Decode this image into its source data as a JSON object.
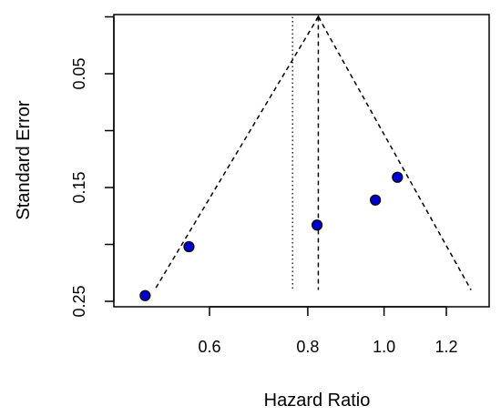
{
  "chart_data": {
    "type": "scatter",
    "title": "",
    "xlabel": "Hazard Ratio",
    "ylabel": "Standard Error",
    "x_scale": "log",
    "xlim": [
      0.5,
      1.35
    ],
    "ylim": [
      0.25,
      0
    ],
    "x_ticks": [
      0.6,
      0.8,
      1.0,
      1.2
    ],
    "x_tick_labels": [
      "0.6",
      "0.8",
      "1.0",
      "1.2"
    ],
    "y_ticks": [
      0,
      0.05,
      0.1,
      0.15,
      0.2,
      0.25
    ],
    "y_tick_labels": [
      "",
      "0.05",
      "",
      "0.15",
      "",
      "0.25"
    ],
    "grid": false,
    "points": [
      {
        "x": 0.497,
        "y": 0.245
      },
      {
        "x": 0.565,
        "y": 0.202
      },
      {
        "x": 0.822,
        "y": 0.183
      },
      {
        "x": 0.975,
        "y": 0.161
      },
      {
        "x": 1.04,
        "y": 0.141
      }
    ],
    "point_color": "#0000cc",
    "pooled_estimate": 0.825,
    "reference_line": 0.765,
    "funnel": {
      "apex": {
        "x": 0.825,
        "y": 0.0
      },
      "left_bottom": {
        "x": 0.511,
        "y": 0.24
      },
      "right_bottom": {
        "x": 1.29,
        "y": 0.24
      }
    }
  }
}
